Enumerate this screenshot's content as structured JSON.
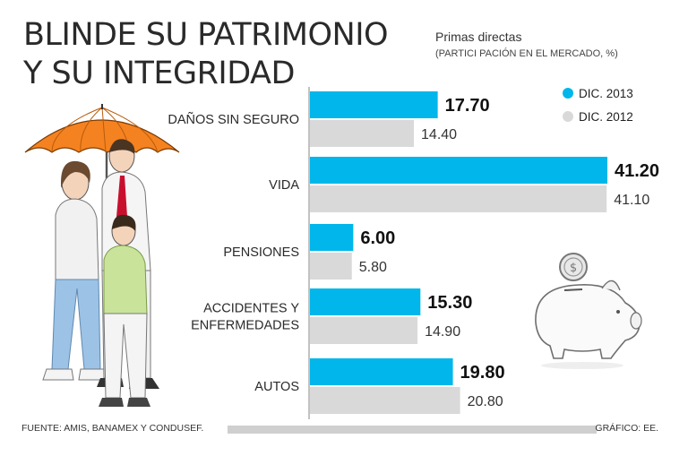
{
  "headline": {
    "line1": "BLINDE SU PATRIMONIO",
    "line2": "Y SU INTEGRIDAD"
  },
  "subtitle": {
    "line1": "Primas directas",
    "line2": "(PARTICI PACIÓN EN EL MERCADO, %)"
  },
  "footer": {
    "source": "FUENTE: AMIS, BANAMEX Y CONDUSEF.",
    "credit": "GRÁFICO: EE."
  },
  "colors": {
    "dic2013": "#00b6ea",
    "dic2012": "#d9d9d9",
    "axis": "#9a9a9a"
  },
  "chart_data": {
    "type": "bar",
    "orientation": "horizontal",
    "categories": [
      "DAÑOS SIN SEGURO",
      "VIDA",
      "PENSIONES",
      "ACCIDENTES Y ENFERMEDADES",
      "AUTOS"
    ],
    "category_lines": [
      [
        "DAÑOS SIN SEGURO"
      ],
      [
        "VIDA"
      ],
      [
        "PENSIONES"
      ],
      [
        "ACCIDENTES Y",
        "ENFERMEDADES"
      ],
      [
        "AUTOS"
      ]
    ],
    "series": [
      {
        "name": "DIC. 2013",
        "values": [
          17.7,
          41.2,
          6.0,
          15.3,
          19.8
        ],
        "labels": [
          "17.70",
          "41.20",
          "6.00",
          "15.30",
          "19.80"
        ]
      },
      {
        "name": "DIC. 2012",
        "values": [
          14.4,
          41.1,
          5.8,
          14.9,
          20.8
        ],
        "labels": [
          "14.40",
          "41.10",
          "5.80",
          "14.90",
          "20.80"
        ]
      }
    ],
    "xlim": [
      0,
      41.2
    ],
    "legend_position": "top-right",
    "grid": false
  },
  "illustrations": {
    "family": "family-under-umbrella-icon",
    "piggy_bank": "piggy-bank-with-coin-icon"
  }
}
